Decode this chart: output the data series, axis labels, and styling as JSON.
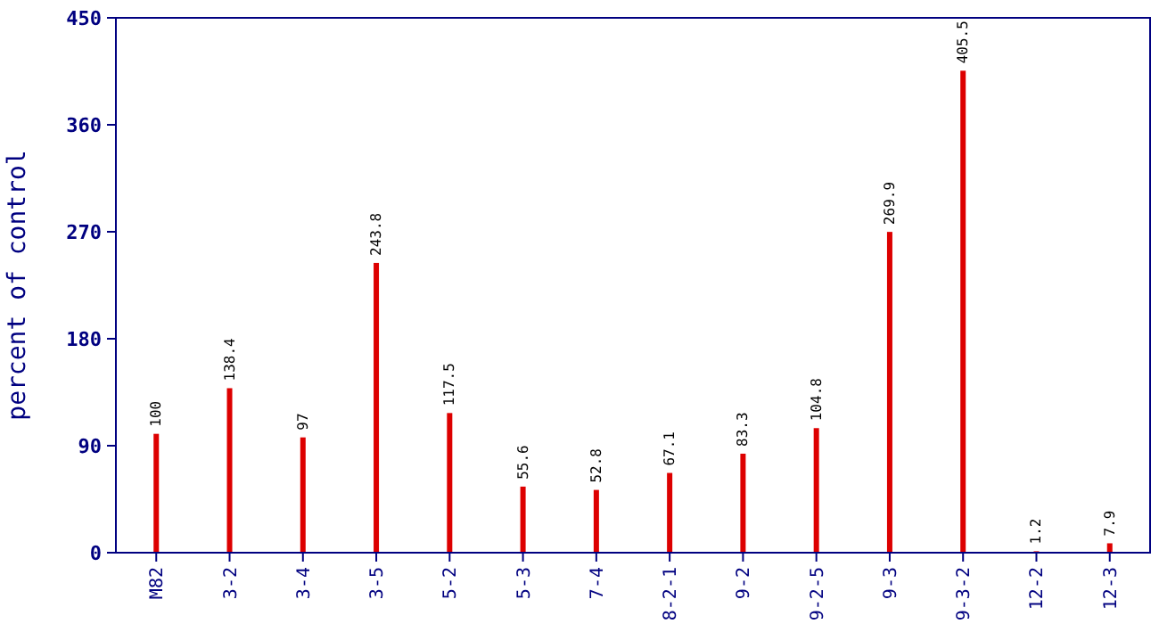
{
  "chart_data": {
    "type": "bar",
    "ylabel": "percent of control",
    "categories": [
      "M82",
      "3-2",
      "3-4",
      "3-5",
      "5-2",
      "5-3",
      "7-4",
      "8-2-1",
      "9-2",
      "9-2-5",
      "9-3",
      "9-3-2",
      "12-2",
      "12-3"
    ],
    "values": [
      100,
      138.4,
      97,
      243.8,
      117.5,
      55.6,
      52.8,
      67.1,
      83.3,
      104.8,
      269.9,
      405.5,
      1.2,
      7.9
    ],
    "color": "#dd0000",
    "ylim": [
      0,
      450
    ],
    "yticks": [
      0,
      90,
      180,
      270,
      360,
      450
    ],
    "data_labels": true,
    "grid": false
  }
}
